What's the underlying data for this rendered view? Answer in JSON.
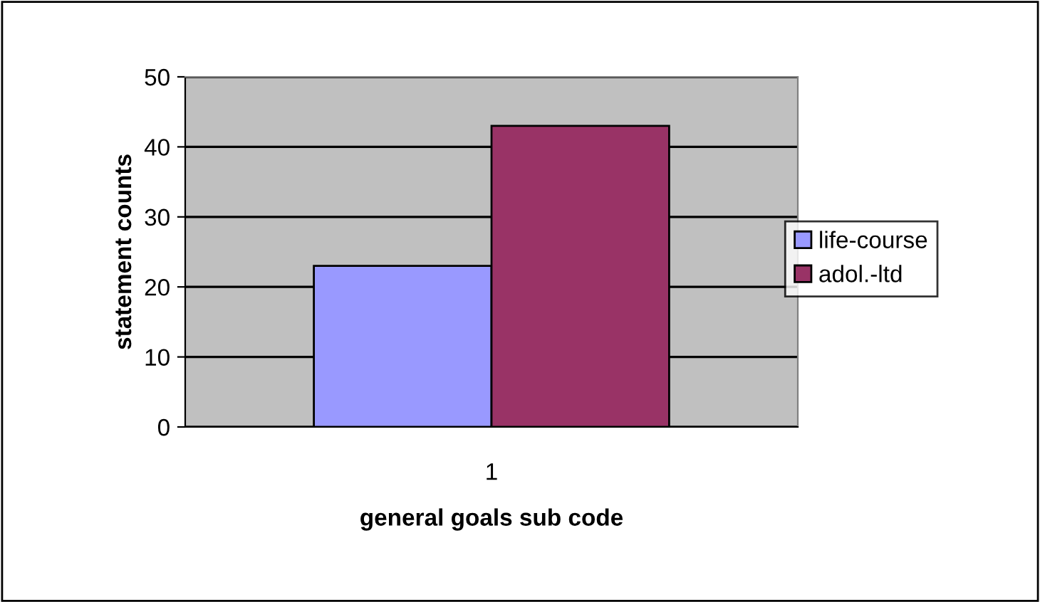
{
  "chart_data": {
    "type": "bar",
    "xlabel": "general goals sub code",
    "ylabel": "statement counts",
    "categories": [
      "1"
    ],
    "series": [
      {
        "name": "life-course",
        "color": "#9999ff",
        "values": [
          23
        ]
      },
      {
        "name": "adol.-ltd",
        "color": "#993366",
        "values": [
          43
        ]
      }
    ],
    "ylim": [
      0,
      50
    ],
    "yticks": [
      0,
      10,
      20,
      30,
      40,
      50
    ],
    "grid": "y",
    "legend": "right"
  }
}
